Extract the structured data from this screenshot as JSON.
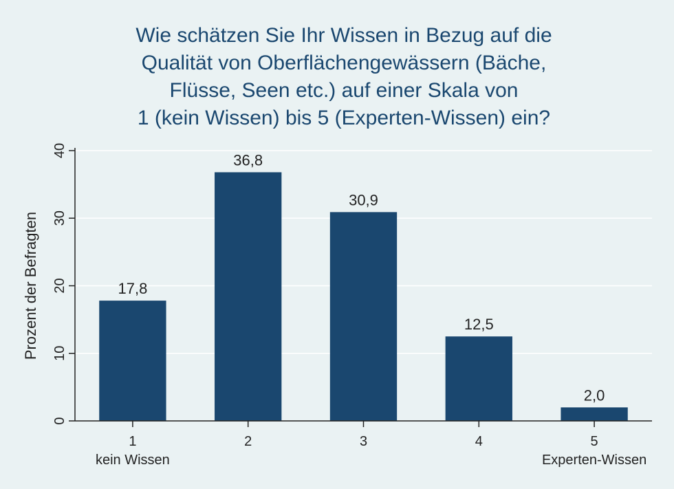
{
  "chart_data": {
    "type": "bar",
    "title_lines": [
      "Wie schätzen Sie Ihr Wissen in Bezug auf die",
      "Qualität von Oberflächengewässern (Bäche,",
      "Flüsse, Seen etc.) auf einer Skala von",
      "1 (kein Wissen) bis 5 (Experten-Wissen) ein?"
    ],
    "ylabel": "Prozent der Befragten",
    "xlabel": "",
    "categories": [
      "1",
      "2",
      "3",
      "4",
      "5"
    ],
    "category_sublabels": [
      "kein Wissen",
      "",
      "",
      "",
      "Experten-Wissen"
    ],
    "values": [
      17.8,
      36.8,
      30.9,
      12.5,
      2.0
    ],
    "value_labels": [
      "17,8",
      "36,8",
      "30,9",
      "12,5",
      "2,0"
    ],
    "yticks": [
      0,
      10,
      20,
      30,
      40
    ],
    "ylim": [
      0,
      40
    ],
    "grid": true,
    "colors": {
      "bar": "#1a476f",
      "background": "#eaf2f3",
      "grid": "#ffffff",
      "title": "#1a476f"
    }
  }
}
